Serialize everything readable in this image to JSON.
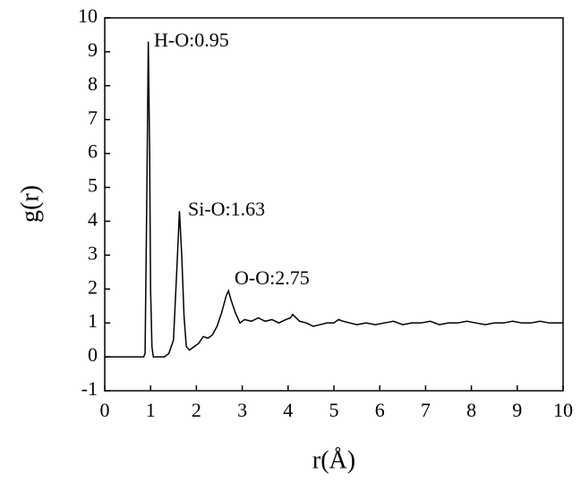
{
  "chart_data": {
    "type": "line",
    "xlabel": "r(Å)",
    "ylabel": "g(r)",
    "color": "#000000",
    "x": [
      0,
      0.85,
      0.88,
      0.92,
      0.95,
      0.98,
      1.0,
      1.03,
      1.06,
      1.3,
      1.4,
      1.5,
      1.57,
      1.63,
      1.68,
      1.73,
      1.78,
      1.85,
      1.95,
      2.05,
      2.15,
      2.25,
      2.35,
      2.45,
      2.55,
      2.65,
      2.7,
      2.75,
      2.85,
      2.95,
      3.05,
      3.2,
      3.35,
      3.5,
      3.65,
      3.8,
      3.95,
      4.05,
      4.1,
      4.25,
      4.4,
      4.55,
      4.7,
      4.85,
      5.0,
      5.1,
      5.2,
      5.35,
      5.5,
      5.7,
      5.9,
      6.1,
      6.3,
      6.5,
      6.7,
      6.9,
      7.1,
      7.3,
      7.5,
      7.7,
      7.9,
      8.1,
      8.3,
      8.5,
      8.7,
      8.9,
      9.1,
      9.3,
      9.5,
      9.7,
      9.9,
      10
    ],
    "values": [
      0,
      0,
      0.1,
      5,
      9.3,
      6,
      2,
      0.3,
      0,
      0,
      0.1,
      0.5,
      2.5,
      4.3,
      3,
      1.2,
      0.3,
      0.2,
      0.3,
      0.4,
      0.6,
      0.55,
      0.65,
      0.9,
      1.3,
      1.8,
      1.95,
      1.7,
      1.3,
      1.0,
      1.1,
      1.05,
      1.15,
      1.05,
      1.1,
      1.0,
      1.1,
      1.15,
      1.25,
      1.05,
      1.0,
      0.9,
      0.95,
      1.0,
      1.0,
      1.1,
      1.05,
      1.0,
      0.95,
      1.0,
      0.95,
      1.0,
      1.05,
      0.95,
      1.0,
      1.0,
      1.05,
      0.95,
      1.0,
      1.0,
      1.05,
      1.0,
      0.95,
      1.0,
      1.0,
      1.05,
      1.0,
      1.0,
      1.05,
      1.0,
      1.0,
      1.0
    ],
    "xlim": [
      0,
      10
    ],
    "xticks": [
      0,
      1,
      2,
      3,
      4,
      5,
      6,
      7,
      8,
      9,
      10
    ],
    "ylim": [
      -1,
      10
    ],
    "yticks": [
      -1,
      0,
      1,
      2,
      3,
      4,
      5,
      6,
      7,
      8,
      9,
      10
    ],
    "annotations": [
      "H-O:0.95",
      "Si-O:1.63",
      "O-O:2.75"
    ]
  }
}
